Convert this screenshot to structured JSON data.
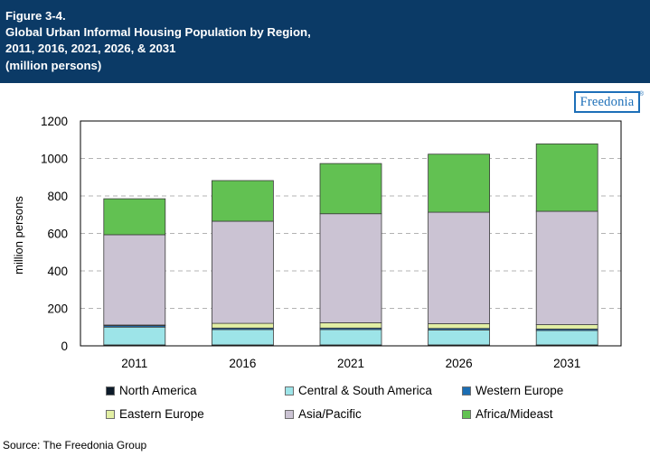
{
  "header": {
    "lines": [
      "Figure 3-4.",
      "Global Urban Informal Housing Population by Region,",
      "2011, 2016, 2021, 2026, & 2031",
      "(million persons)"
    ]
  },
  "logo": {
    "text": "Freedonia",
    "mark": "®"
  },
  "source": "Source: The Freedonia Group",
  "chart_data": {
    "type": "bar",
    "stacked": true,
    "categories": [
      "2011",
      "2016",
      "2021",
      "2026",
      "2031"
    ],
    "ylabel": "million persons",
    "ylim": [
      0,
      1200
    ],
    "yticks": [
      0,
      200,
      400,
      600,
      800,
      1000,
      1200
    ],
    "grid": "horizontal dashed",
    "legend_position": "bottom",
    "series": [
      {
        "name": "North America",
        "color": "#0d1b2a",
        "values": [
          5,
          5,
          5,
          5,
          5
        ]
      },
      {
        "name": "Central & South America",
        "color": "#9de4e8",
        "values": [
          95,
          82,
          82,
          80,
          77
        ]
      },
      {
        "name": "Western Europe",
        "color": "#1b6db3",
        "values": [
          8,
          8,
          8,
          8,
          8
        ]
      },
      {
        "name": "Eastern Europe",
        "color": "#e2efa4",
        "values": [
          3,
          25,
          28,
          25,
          23
        ]
      },
      {
        "name": "Asia/Pacific",
        "color": "#cbc3d3",
        "values": [
          482,
          545,
          582,
          595,
          605
        ]
      },
      {
        "name": "Africa/Mideast",
        "color": "#62c152",
        "values": [
          192,
          217,
          268,
          310,
          360
        ]
      }
    ]
  }
}
